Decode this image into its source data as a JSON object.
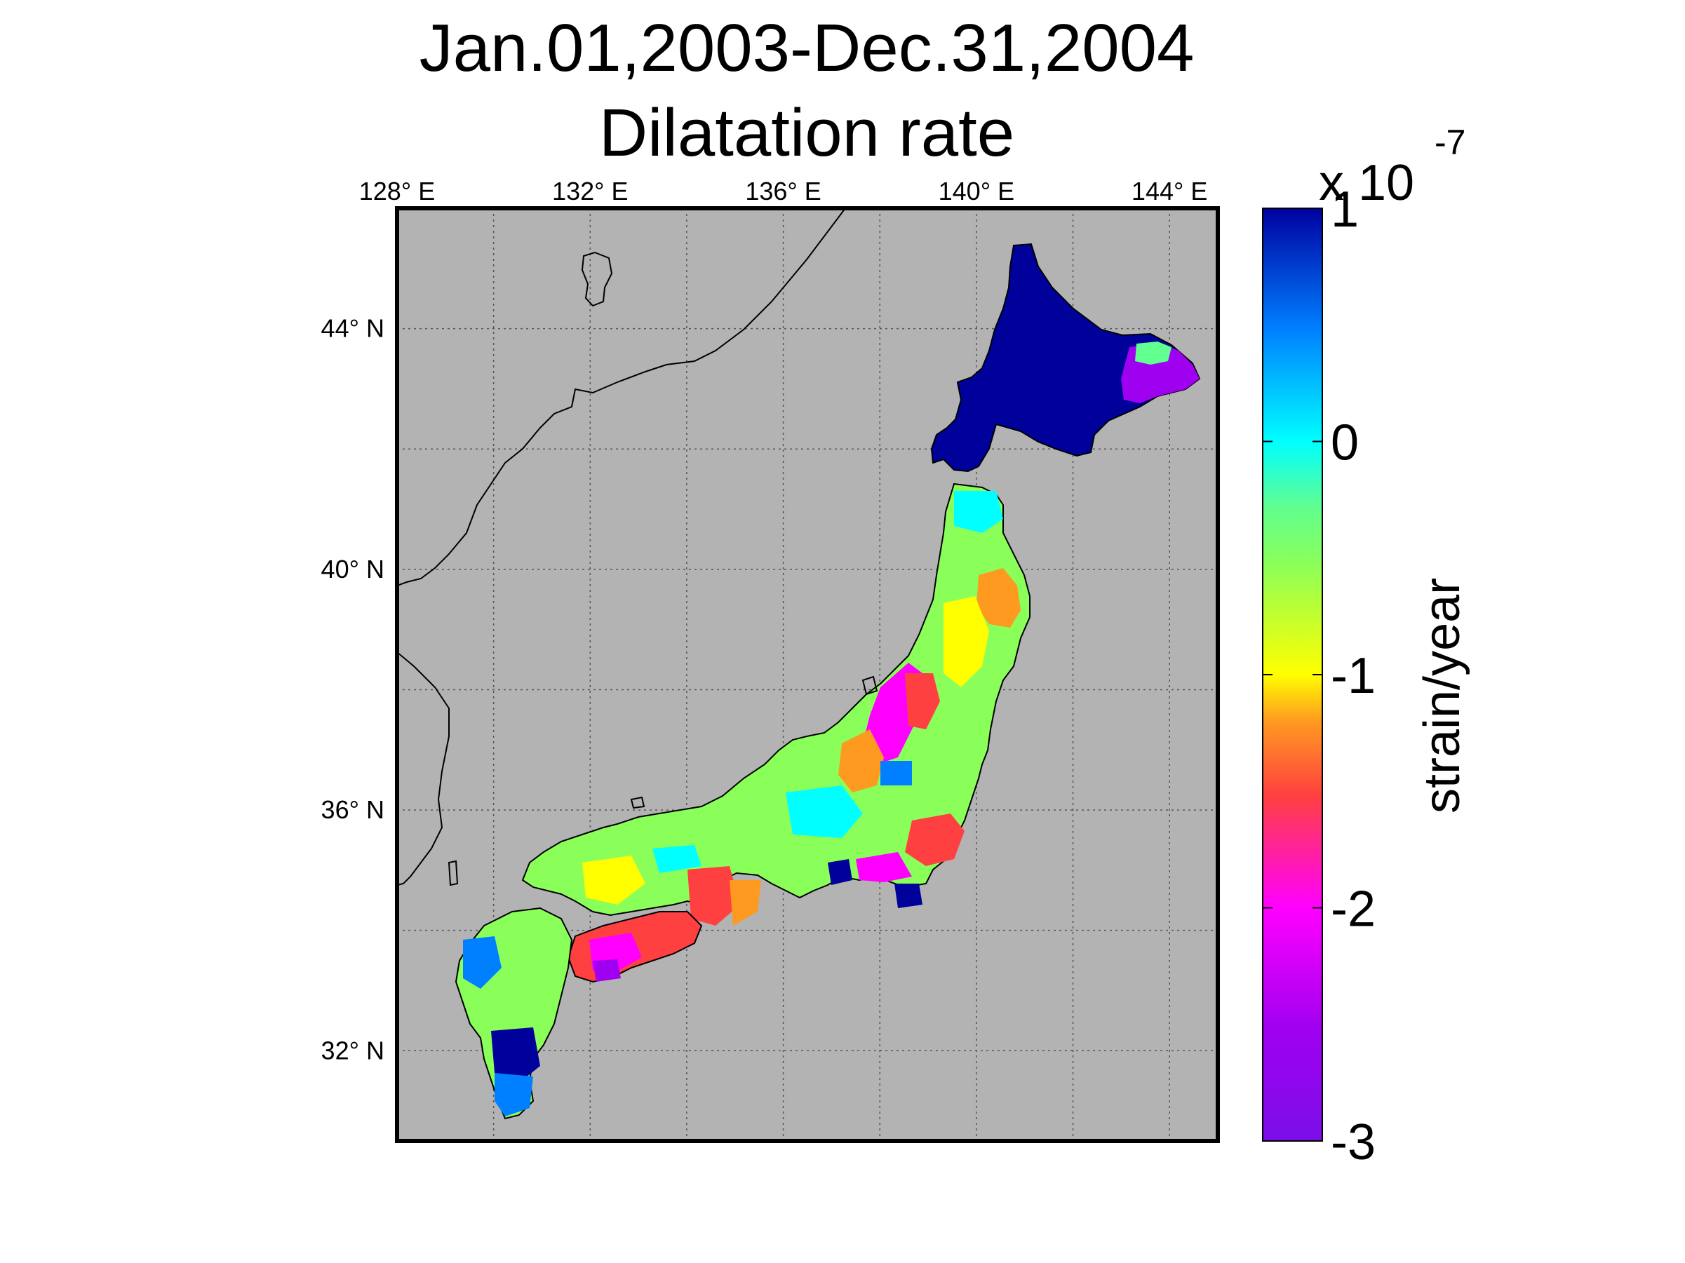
{
  "title": {
    "line1": "Jan.01,2003-Dec.31,2004",
    "line2": "Dilatation rate"
  },
  "map": {
    "region": "Japan",
    "longitude_range": [
      128,
      145
    ],
    "latitude_range": [
      30.5,
      46
    ],
    "lon_ticks": [
      {
        "value": 128,
        "label": "128° E"
      },
      {
        "value": 132,
        "label": "132° E"
      },
      {
        "value": 136,
        "label": "136° E"
      },
      {
        "value": 140,
        "label": "140° E"
      },
      {
        "value": 144,
        "label": "144° E"
      }
    ],
    "lat_ticks": [
      {
        "value": 44,
        "label": "44° N"
      },
      {
        "value": 40,
        "label": "40° N"
      },
      {
        "value": 36,
        "label": "36° N"
      },
      {
        "value": 32,
        "label": "32° N"
      }
    ],
    "background_color": "#b3b3b3",
    "grid": "dotted",
    "regions": [
      {
        "name": "hokkaido",
        "value": 1.0
      },
      {
        "name": "hokkaido-east",
        "value": -2.3
      },
      {
        "name": "tohoku",
        "value": -0.6
      },
      {
        "name": "tohoku-west-coast",
        "value": -2.0
      },
      {
        "name": "central-japan",
        "value": -0.4
      },
      {
        "name": "kii-shikoku-south",
        "value": -1.6
      },
      {
        "name": "kyushu",
        "value": -0.3
      },
      {
        "name": "kyushu-south",
        "value": 0.8
      }
    ]
  },
  "colorbar": {
    "exponent_label": "x 10",
    "exponent": "-7",
    "label": "strain/year",
    "min": -3,
    "max": 1,
    "ticks": [
      {
        "value": 1,
        "label": "1"
      },
      {
        "value": 0,
        "label": "0"
      },
      {
        "value": -1,
        "label": "-1"
      },
      {
        "value": -2,
        "label": "-2"
      },
      {
        "value": -3,
        "label": "-3"
      }
    ],
    "colors": [
      "#7b0fe8",
      "#a000f0",
      "#ff00ff",
      "#ff4040",
      "#ff9a20",
      "#ffff00",
      "#8aff5a",
      "#60ff90",
      "#00ffff",
      "#0080ff",
      "#0000a0"
    ]
  }
}
